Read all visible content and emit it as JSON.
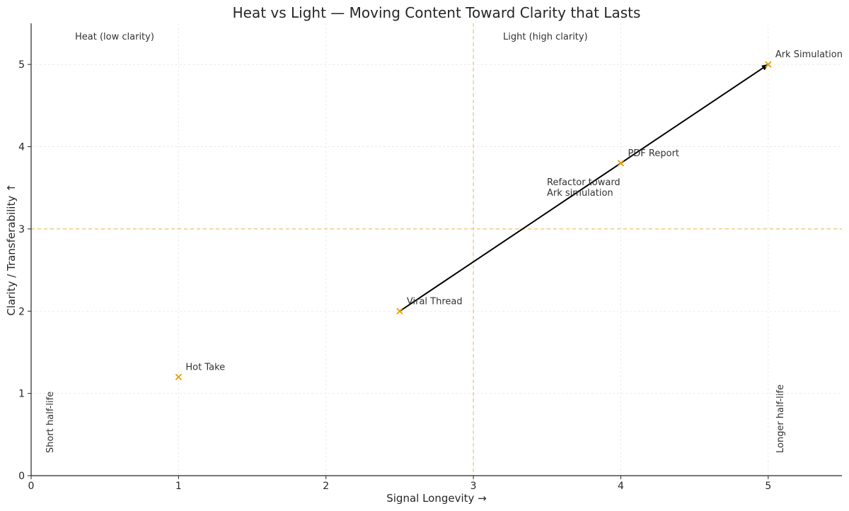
{
  "chart_data": {
    "type": "scatter",
    "title": "Heat vs Light — Moving Content Toward Clarity that Lasts",
    "xlabel": "Signal Longevity →",
    "ylabel": "Clarity / Transferability ↑",
    "xlim": [
      0,
      5.5
    ],
    "ylim": [
      0,
      5.5
    ],
    "xticks": [
      0,
      1,
      2,
      3,
      4,
      5
    ],
    "yticks": [
      0,
      1,
      2,
      3,
      4,
      5
    ],
    "grid": true,
    "marker_color": "#e69f00",
    "threshold_color": "#e8c46a",
    "points": [
      {
        "label": "Hot Take",
        "x": 1,
        "y": 1.2
      },
      {
        "label": "Viral Thread",
        "x": 2.5,
        "y": 2
      },
      {
        "label": "PDF Report",
        "x": 4,
        "y": 3.8
      },
      {
        "label": "Ark Simulation",
        "x": 5,
        "y": 5
      }
    ],
    "threshold_x": 3,
    "threshold_y": 3,
    "arrow": {
      "from": [
        2.5,
        2
      ],
      "to": [
        5,
        5
      ]
    },
    "annotations": {
      "refactor_line1": "Refactor toward",
      "refactor_line2": "Ark simulation",
      "heat": "Heat (low clarity)",
      "light": "Light (high clarity)",
      "short_half_life": "Short half-life",
      "longer_half_life": "Longer half-life"
    }
  }
}
